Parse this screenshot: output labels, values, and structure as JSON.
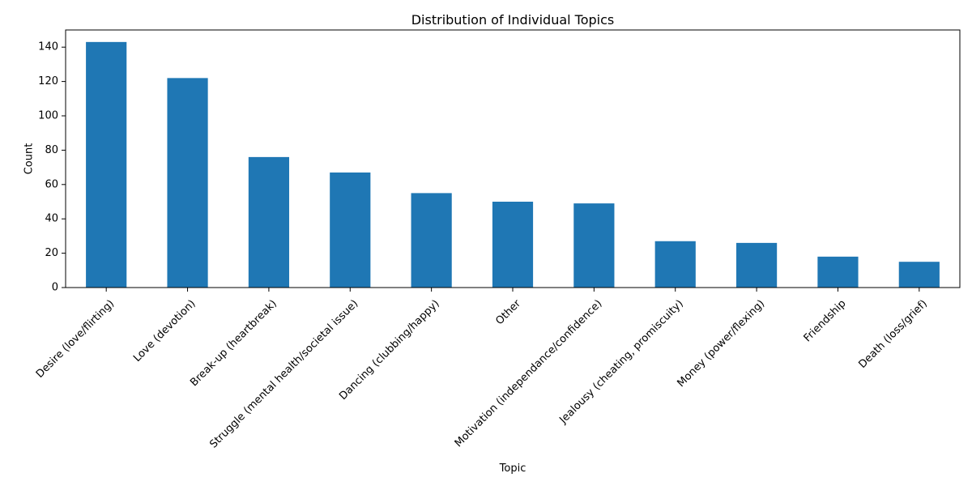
{
  "chart_data": {
    "type": "bar",
    "title": "Distribution of Individual Topics",
    "xlabel": "Topic",
    "ylabel": "Count",
    "categories": [
      "Desire (love/flirting)",
      "Love (devotion)",
      "Break-up (heartbreak)",
      "Struggle (mental health/societal issue)",
      "Dancing (clubbing/happy)",
      "Other",
      "Motivation (independance/confidence)",
      "Jealousy (cheating, promiscuity)",
      "Money (power/flexing)",
      "Friendship",
      "Death (loss/grief)"
    ],
    "values": [
      143,
      122,
      76,
      67,
      55,
      50,
      49,
      27,
      26,
      18,
      15
    ],
    "ylim": [
      0,
      150
    ],
    "yticks": [
      0,
      20,
      40,
      60,
      80,
      100,
      120,
      140
    ],
    "grid": false,
    "legend": "none",
    "bar_color": "#1f77b4"
  }
}
